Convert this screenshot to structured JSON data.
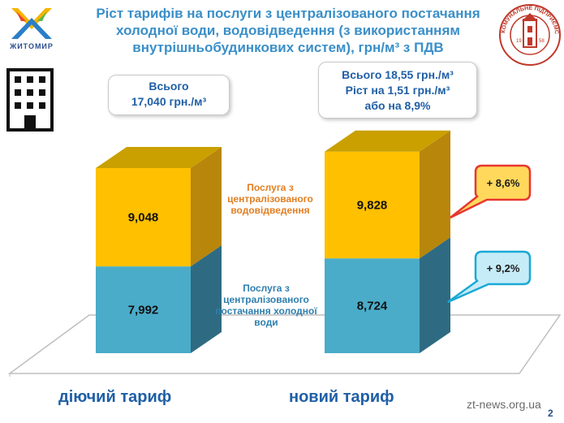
{
  "title": "Ріст тарифів на послуги з централізованого постачання холодної води, водовідведення (з використанням внутрішньобудинкових систем), грн/м³ з ПДВ",
  "logo_left": {
    "caption": "ЖИТОМИР",
    "icon": "zhytomyr-city-logo-icon"
  },
  "logo_right": {
    "icon": "zhytomyrvodokanal-logo-icon",
    "text": "КОМУНАЛЬНЕ ПІДПРИЄМСТВО ЖИТОМИРВОДОКАНАЛ",
    "year_left": "19",
    "year_right": "58"
  },
  "building_icon": "apartment-building-icon",
  "callouts": {
    "current": {
      "line1": "Всього",
      "line2": "17,040 грн./м³"
    },
    "new": {
      "line1": "Всього 18,55 грн./м³",
      "line2": "Ріст на 1,51 грн./м³",
      "line3": "або на 8,9%"
    }
  },
  "bubbles": {
    "drainage": {
      "text": "+ 8,6%",
      "color": "#e8372f",
      "fill": "#ffd85c"
    },
    "water": {
      "text": "+ 9,2%",
      "color": "#1aa9d6",
      "fill": "#c6ecf8"
    }
  },
  "legend": {
    "drainage": "Послуга з централізованого водовідведення",
    "water": "Послуга з централізованого постачання холодної води"
  },
  "watermark": "zt-news.org.ua",
  "page_number": "2",
  "colors": {
    "water_front": "#4aacc9",
    "water_side": "#2e6b82",
    "drain_front": "#ffc000",
    "drain_side": "#b8860b",
    "drain_top": "#c9a000",
    "title": "#3a8fc8"
  },
  "chart_data": {
    "type": "bar",
    "stacked": true,
    "categories": [
      "діючий тариф",
      "новий тариф"
    ],
    "series": [
      {
        "name": "Послуга з централізованого постачання холодної води",
        "values": [
          7.992,
          8.724
        ],
        "labels": [
          "7,992",
          "8,724"
        ]
      },
      {
        "name": "Послуга з централізованого водовідведення",
        "values": [
          9.048,
          9.828
        ],
        "labels": [
          "9,048",
          "9,828"
        ]
      }
    ],
    "totals": [
      17.04,
      18.552
    ],
    "ylim": [
      0,
      20
    ]
  }
}
